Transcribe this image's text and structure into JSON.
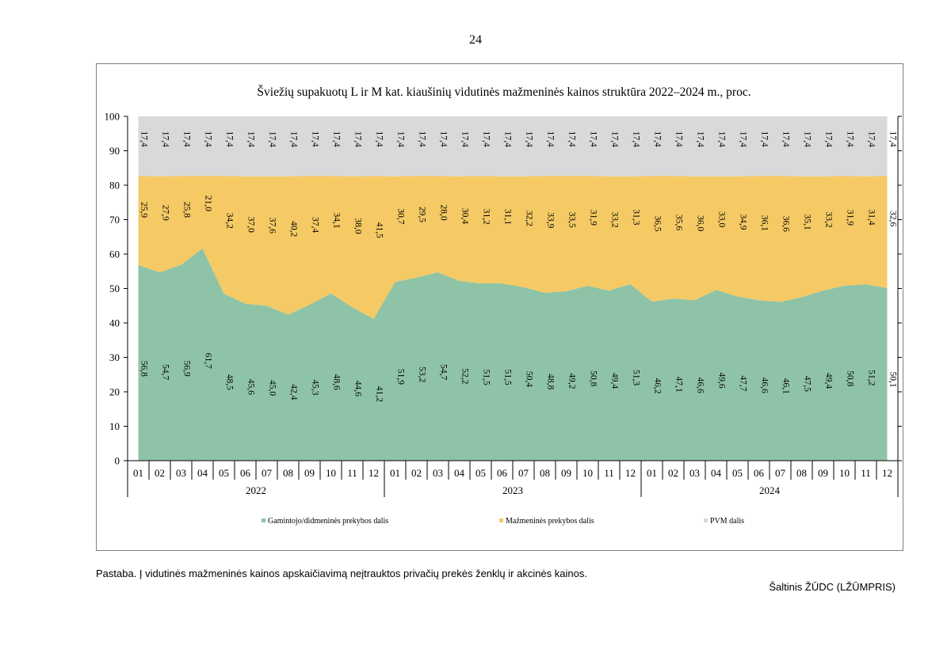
{
  "page_number": "24",
  "note": "Pastaba. Į vidutinės mažmeninės kainos apskaičiavimą neįtrauktos privačių prekės ženklų ir akcinės kainos.",
  "source": "Šaltinis ŽŪDC (LŽŪMPRIS)",
  "chart_data": {
    "type": "area",
    "stacked": true,
    "title": "Šviežių supakuotų L ir M kat. kiaušinių vidutinės mažmeninės kainos struktūra 2022–2024 m., proc.",
    "ylim": [
      0,
      100
    ],
    "yticks": [
      0,
      10,
      20,
      30,
      40,
      50,
      60,
      70,
      80,
      90,
      100
    ],
    "categories": [
      "01",
      "02",
      "03",
      "04",
      "05",
      "06",
      "07",
      "08",
      "09",
      "10",
      "11",
      "12",
      "01",
      "02",
      "03",
      "04",
      "05",
      "06",
      "07",
      "08",
      "09",
      "10",
      "11",
      "12",
      "01",
      "02",
      "03",
      "04",
      "05",
      "06",
      "07",
      "08",
      "09",
      "10",
      "11",
      "12"
    ],
    "groups": [
      "2022",
      "2023",
      "2024"
    ],
    "legend_position": "bottom",
    "series": [
      {
        "name": "Gamintojo/didmeninės prekybos dalis",
        "color": "#8fc3a7",
        "values": [
          56.8,
          54.7,
          56.9,
          61.7,
          48.5,
          45.6,
          45.0,
          42.4,
          45.3,
          48.6,
          44.6,
          41.2,
          51.9,
          53.2,
          54.7,
          52.2,
          51.5,
          51.5,
          50.4,
          48.8,
          49.2,
          50.8,
          49.4,
          51.3,
          46.2,
          47.1,
          46.6,
          49.6,
          47.7,
          46.6,
          46.1,
          47.5,
          49.4,
          50.8,
          51.2,
          50.1
        ],
        "labels": [
          "56,8",
          "54,7",
          "56,9",
          "61,7",
          "48,5",
          "45,6",
          "45,0",
          "42,4",
          "45,3",
          "48,6",
          "44,6",
          "41,2",
          "51,9",
          "53,2",
          "54,7",
          "52,2",
          "51,5",
          "51,5",
          "50,4",
          "48,8",
          "49,2",
          "50,8",
          "49,4",
          "51,3",
          "46,2",
          "47,1",
          "46,6",
          "49,6",
          "47,7",
          "46,6",
          "46,1",
          "47,5",
          "49,4",
          "50,8",
          "51,2",
          "50,1"
        ]
      },
      {
        "name": "Mažmeninės prekybos dalis",
        "color": "#f5ca65",
        "values": [
          25.9,
          27.9,
          25.8,
          21.0,
          34.2,
          37.0,
          37.6,
          40.2,
          37.4,
          34.1,
          38.0,
          41.5,
          30.7,
          29.5,
          28.0,
          30.4,
          31.2,
          31.1,
          32.2,
          33.9,
          33.5,
          31.9,
          33.2,
          31.3,
          36.5,
          35.6,
          36.0,
          33.0,
          34.9,
          36.1,
          36.6,
          35.1,
          33.2,
          31.9,
          31.4,
          32.6
        ],
        "labels": [
          "25,9",
          "27,9",
          "25,8",
          "21,0",
          "34,2",
          "37,0",
          "37,6",
          "40,2",
          "37,4",
          "34,1",
          "38,0",
          "41,5",
          "30,7",
          "29,5",
          "28,0",
          "30,4",
          "31,2",
          "31,1",
          "32,2",
          "33,9",
          "33,5",
          "31,9",
          "33,2",
          "31,3",
          "36,5",
          "35,6",
          "36,0",
          "33,0",
          "34,9",
          "36,1",
          "36,6",
          "35,1",
          "33,2",
          "31,9",
          "31,4",
          "32,6"
        ]
      },
      {
        "name": "PVM dalis",
        "color": "#d9d9d9",
        "values": [
          17.4,
          17.4,
          17.4,
          17.4,
          17.4,
          17.4,
          17.4,
          17.4,
          17.4,
          17.4,
          17.4,
          17.4,
          17.4,
          17.4,
          17.4,
          17.4,
          17.4,
          17.4,
          17.4,
          17.4,
          17.4,
          17.4,
          17.4,
          17.4,
          17.4,
          17.4,
          17.4,
          17.4,
          17.4,
          17.4,
          17.4,
          17.4,
          17.4,
          17.4,
          17.4,
          17.4
        ],
        "labels": [
          "17,4",
          "17,4",
          "17,4",
          "17,4",
          "17,4",
          "17,4",
          "17,4",
          "17,4",
          "17,4",
          "17,4",
          "17,4",
          "17,4",
          "17,4",
          "17,4",
          "17,4",
          "17,4",
          "17,4",
          "17,4",
          "17,4",
          "17,4",
          "17,4",
          "17,4",
          "17,4",
          "17,4",
          "17,4",
          "17,4",
          "17,4",
          "17,4",
          "17,4",
          "17,4",
          "17,4",
          "17,4",
          "17,4",
          "17,4",
          "17,4",
          "17,4"
        ]
      }
    ]
  }
}
